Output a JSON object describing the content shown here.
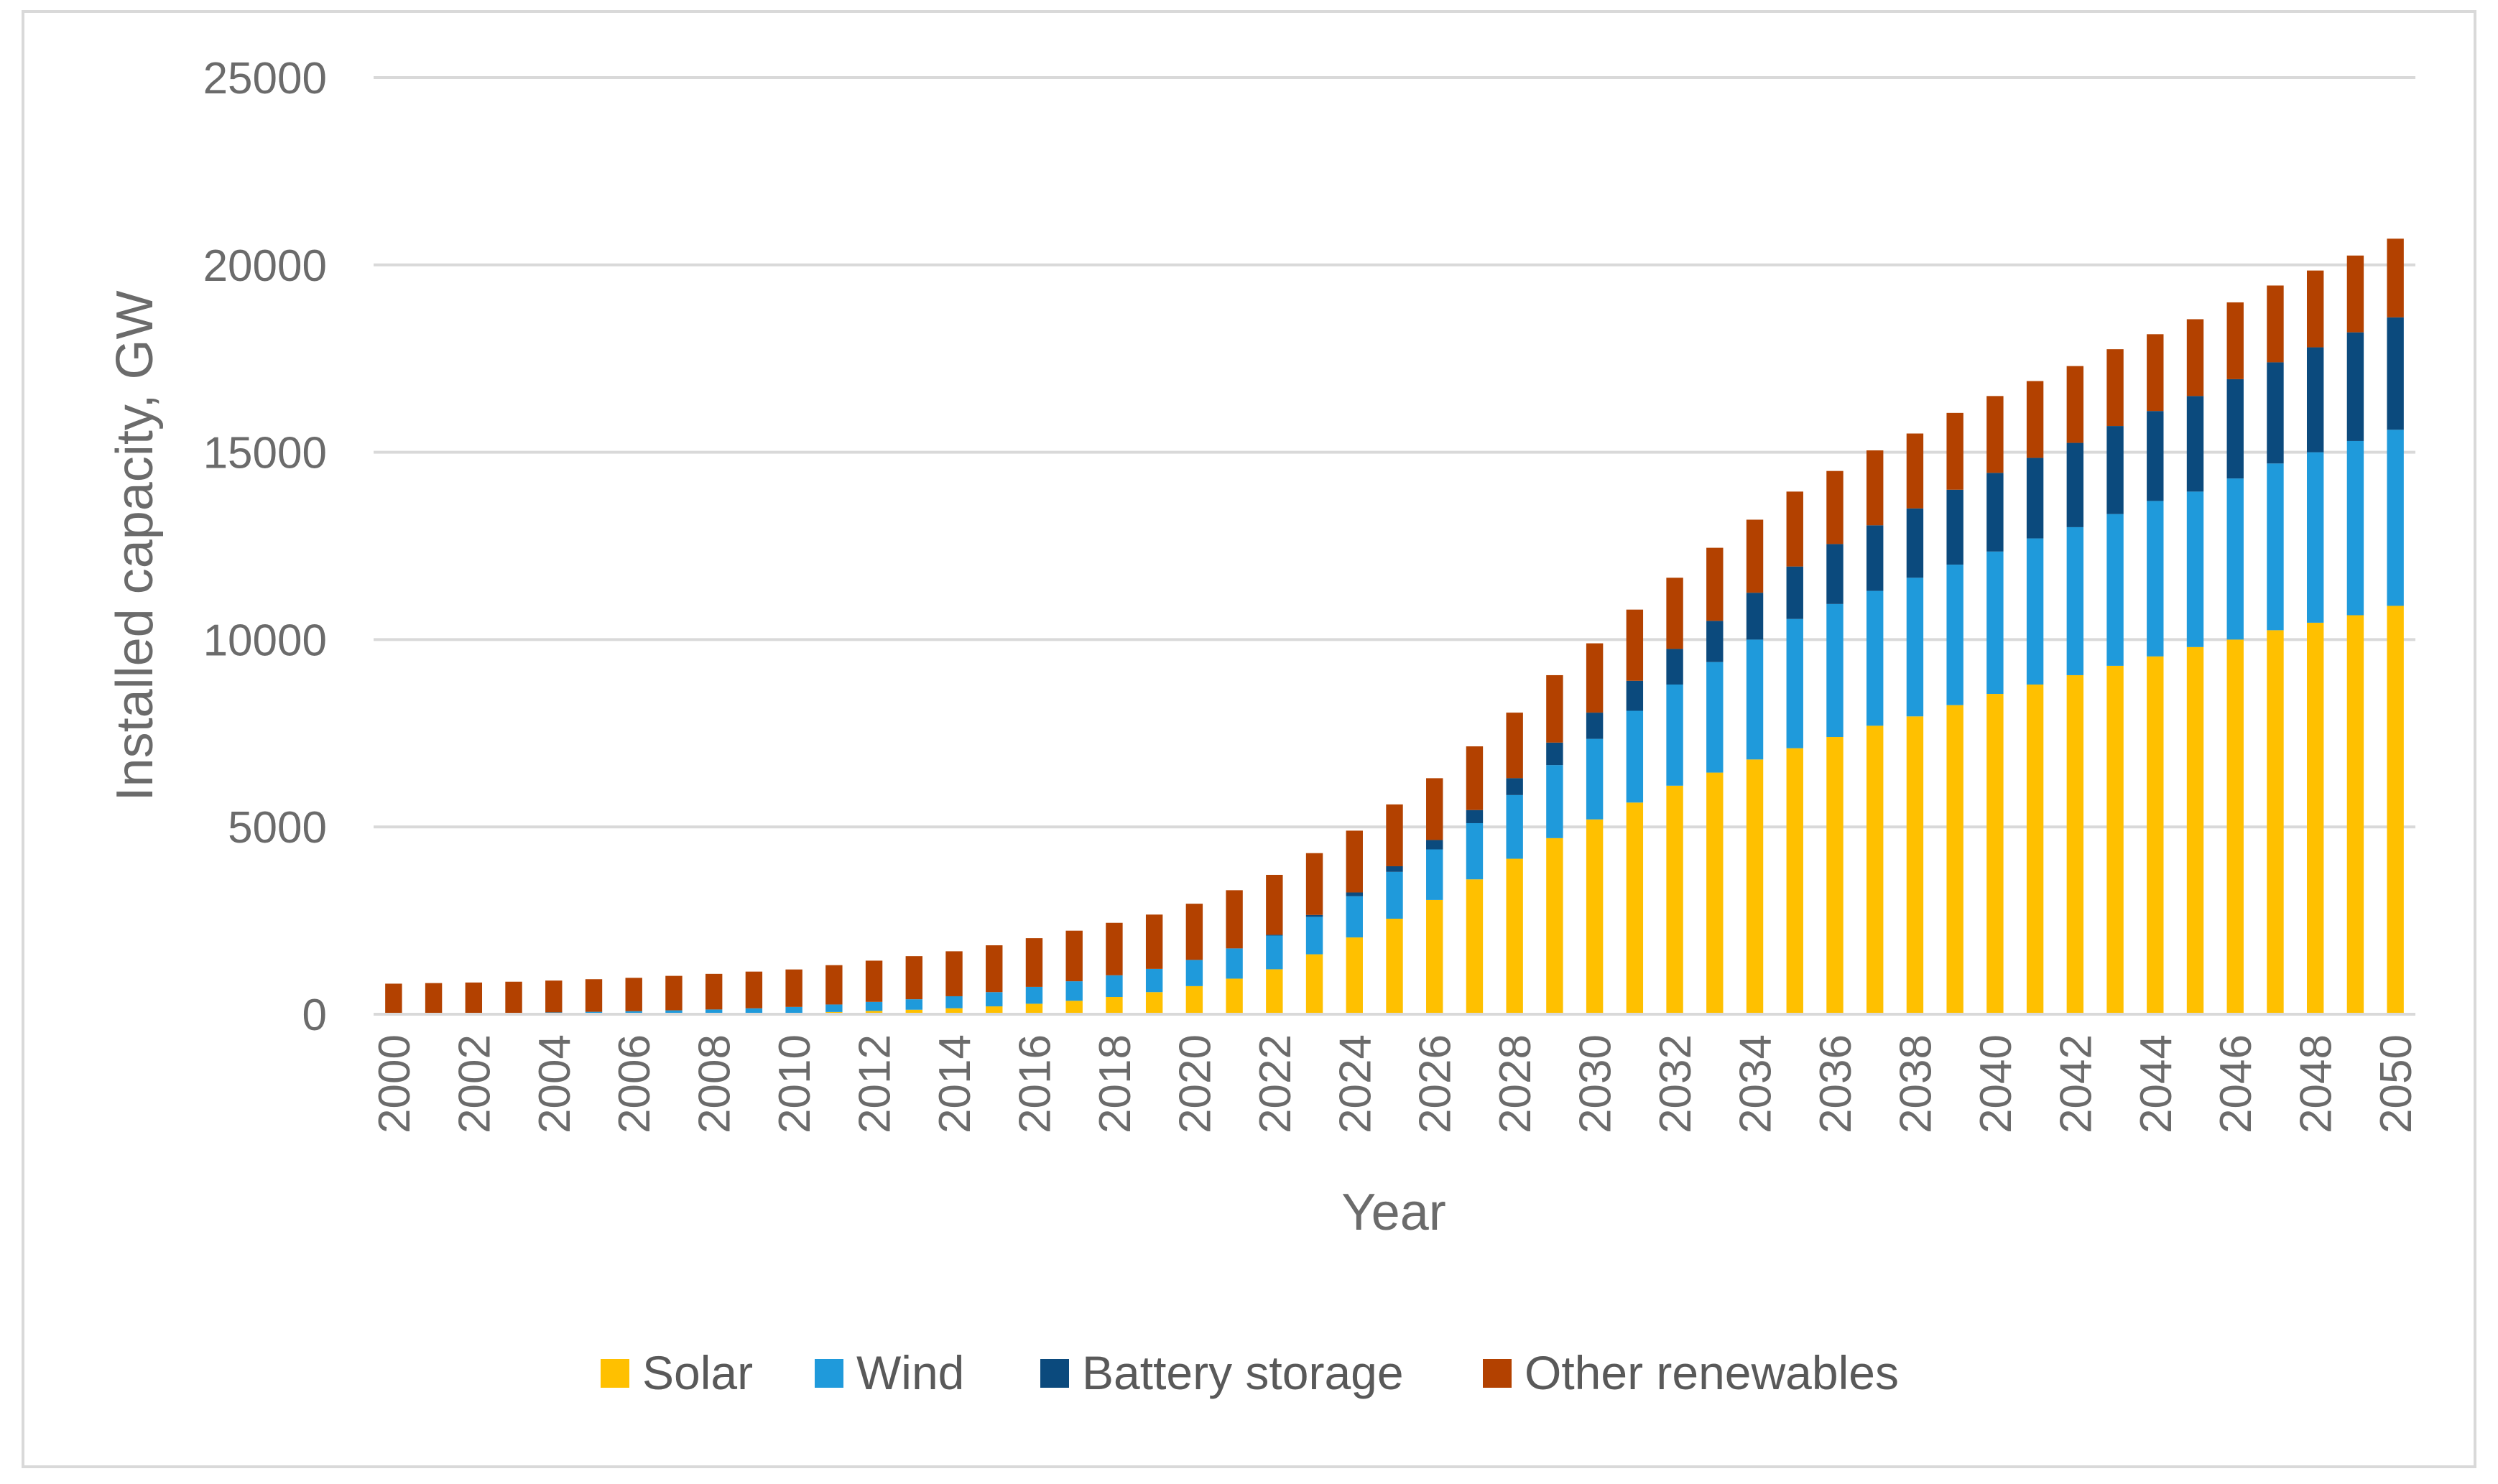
{
  "chart_data": {
    "type": "bar",
    "stacked": true,
    "title": "",
    "xlabel": "Year",
    "ylabel": "Installed capacity, GW",
    "ylim": [
      0,
      25000
    ],
    "yticks": [
      0,
      5000,
      10000,
      15000,
      20000,
      25000
    ],
    "grid": true,
    "legend_position": "bottom",
    "categories": [
      "2000",
      "2001",
      "2002",
      "2003",
      "2004",
      "2005",
      "2006",
      "2007",
      "2008",
      "2009",
      "2010",
      "2011",
      "2012",
      "2013",
      "2014",
      "2015",
      "2016",
      "2017",
      "2018",
      "2019",
      "2020",
      "2021",
      "2022",
      "2023",
      "2024",
      "2025",
      "2026",
      "2027",
      "2028",
      "2029",
      "2030",
      "2031",
      "2032",
      "2033",
      "2034",
      "2035",
      "2036",
      "2037",
      "2038",
      "2039",
      "2040",
      "2041",
      "2042",
      "2043",
      "2044",
      "2045",
      "2046",
      "2047",
      "2048",
      "2049",
      "2050"
    ],
    "series": [
      {
        "name": "Solar",
        "color": "#FFC000",
        "values": [
          1,
          2,
          2,
          3,
          4,
          5,
          7,
          9,
          12,
          18,
          35,
          60,
          90,
          120,
          160,
          210,
          280,
          360,
          460,
          590,
          750,
          950,
          1200,
          1600,
          2050,
          2550,
          3050,
          3600,
          4150,
          4700,
          5200,
          5650,
          6100,
          6450,
          6800,
          7100,
          7400,
          7700,
          7950,
          8250,
          8550,
          8800,
          9050,
          9300,
          9550,
          9800,
          10000,
          10250,
          10450,
          10650,
          10900
        ]
      },
      {
        "name": "Wind",
        "color": "#1F9ADB",
        "values": [
          15,
          20,
          25,
          35,
          45,
          60,
          75,
          95,
          115,
          140,
          160,
          200,
          240,
          280,
          320,
          380,
          450,
          520,
          580,
          620,
          700,
          800,
          900,
          1000,
          1100,
          1250,
          1350,
          1500,
          1700,
          1950,
          2150,
          2450,
          2700,
          2950,
          3200,
          3450,
          3550,
          3600,
          3700,
          3750,
          3800,
          3900,
          3950,
          4050,
          4150,
          4150,
          4300,
          4450,
          4550,
          4650,
          4700
        ]
      },
      {
        "name": "Battery storage",
        "color": "#0B4A7D",
        "values": [
          0,
          0,
          0,
          0,
          0,
          0,
          0,
          0,
          0,
          0,
          0,
          0,
          0,
          0,
          0,
          0,
          0,
          0,
          0,
          0,
          0,
          10,
          20,
          50,
          100,
          150,
          250,
          350,
          450,
          600,
          700,
          800,
          950,
          1100,
          1250,
          1400,
          1600,
          1750,
          1850,
          2000,
          2100,
          2150,
          2250,
          2350,
          2400,
          2550,
          2650,
          2700,
          2800,
          2900,
          3000
        ]
      },
      {
        "name": "Other renewables",
        "color": "#B34100",
        "values": [
          800,
          810,
          820,
          830,
          850,
          870,
          890,
          920,
          950,
          980,
          1000,
          1050,
          1100,
          1150,
          1200,
          1250,
          1300,
          1350,
          1400,
          1450,
          1500,
          1550,
          1600,
          1650,
          1650,
          1650,
          1650,
          1700,
          1750,
          1800,
          1850,
          1900,
          1900,
          1950,
          1950,
          2000,
          1950,
          2000,
          2000,
          2050,
          2050,
          2050,
          2050,
          2050,
          2050,
          2050,
          2050,
          2050,
          2050,
          2050,
          2100
        ]
      }
    ]
  }
}
